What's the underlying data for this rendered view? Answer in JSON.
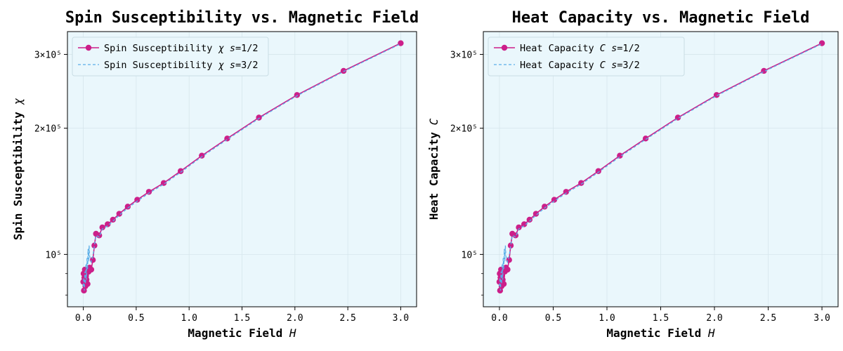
{
  "chart_data": [
    {
      "type": "line",
      "title": "Spin Susceptibility vs. Magnetic Field",
      "xlabel": "Magnetic Field H",
      "ylabel": "Spin Susceptibility χ",
      "xlim": [
        -0.15,
        3.15
      ],
      "ylim": [
        75000,
        340000
      ],
      "yscale": "log",
      "grid": true,
      "legend_position": "top-left",
      "x_ticks": [
        {
          "value": 0.0,
          "label": "0.0"
        },
        {
          "value": 0.5,
          "label": "0.5"
        },
        {
          "value": 1.0,
          "label": "1.0"
        },
        {
          "value": 1.5,
          "label": "1.5"
        },
        {
          "value": 2.0,
          "label": "2.0"
        },
        {
          "value": 2.5,
          "label": "2.5"
        },
        {
          "value": 3.0,
          "label": "3.0"
        }
      ],
      "y_ticks": [
        {
          "value": 100000,
          "label": "10⁵"
        },
        {
          "value": 200000,
          "label": "2×10⁵"
        },
        {
          "value": 300000,
          "label": "3×10⁵"
        }
      ],
      "series": [
        {
          "name": "Spin Susceptibility χ s=1/2",
          "color": "#cc1f8a",
          "style": "solid-marker",
          "x": [
            0.0,
            0.003,
            0.006,
            0.01,
            0.015,
            0.02,
            0.025,
            0.03,
            0.04,
            0.05,
            0.06,
            0.075,
            0.09,
            0.105,
            0.12,
            0.15,
            0.18,
            0.23,
            0.28,
            0.34,
            0.42,
            0.51,
            0.62,
            0.76,
            0.92,
            1.12,
            1.36,
            1.66,
            2.02,
            2.46,
            3.0
          ],
          "y": [
            86000,
            90000,
            82000,
            88000,
            92000,
            84000,
            89000,
            87000,
            85000,
            91000,
            93000,
            92000,
            97000,
            105000,
            112000,
            111000,
            116000,
            118000,
            121000,
            125000,
            130000,
            135000,
            141000,
            148000,
            158000,
            172000,
            189000,
            212000,
            240000,
            274000,
            319000
          ]
        },
        {
          "name": "Spin Susceptibility χ s=3/2",
          "color": "#5aaee8",
          "style": "dashed",
          "x": [
            0.0,
            0.005,
            0.01,
            0.015,
            0.02,
            0.025,
            0.03,
            0.035,
            0.04,
            0.045,
            0.05,
            0.055,
            0.06,
            0.075,
            0.09,
            0.105,
            0.12,
            0.15,
            0.18,
            0.23,
            0.28,
            0.34,
            0.42,
            0.51,
            0.62,
            0.76,
            0.92,
            1.12,
            1.36,
            1.66,
            2.02,
            2.46,
            3.0
          ],
          "y": [
            84000,
            88000,
            82000,
            91000,
            85000,
            95000,
            87000,
            98000,
            92000,
            103000,
            96000,
            105000,
            99000,
            96000,
            99000,
            105000,
            111000,
            110000,
            115000,
            117000,
            120000,
            124000,
            129000,
            134000,
            140000,
            147000,
            157000,
            171000,
            188000,
            211000,
            239000,
            273000,
            318000
          ]
        }
      ]
    },
    {
      "type": "line",
      "title": "Heat Capacity vs. Magnetic Field",
      "xlabel": "Magnetic Field H",
      "ylabel": "Heat Capacity C",
      "xlim": [
        -0.15,
        3.15
      ],
      "ylim": [
        75000,
        340000
      ],
      "yscale": "log",
      "grid": true,
      "legend_position": "top-left",
      "x_ticks": [
        {
          "value": 0.0,
          "label": "0.0"
        },
        {
          "value": 0.5,
          "label": "0.5"
        },
        {
          "value": 1.0,
          "label": "1.0"
        },
        {
          "value": 1.5,
          "label": "1.5"
        },
        {
          "value": 2.0,
          "label": "2.0"
        },
        {
          "value": 2.5,
          "label": "2.5"
        },
        {
          "value": 3.0,
          "label": "3.0"
        }
      ],
      "y_ticks": [
        {
          "value": 100000,
          "label": "10⁵"
        },
        {
          "value": 200000,
          "label": "2×10⁵"
        },
        {
          "value": 300000,
          "label": "3×10⁵"
        }
      ],
      "series": [
        {
          "name": "Heat Capacity C s=1/2",
          "color": "#cc1f8a",
          "style": "solid-marker",
          "x": [
            0.0,
            0.003,
            0.006,
            0.01,
            0.015,
            0.02,
            0.025,
            0.03,
            0.04,
            0.05,
            0.06,
            0.075,
            0.09,
            0.105,
            0.12,
            0.15,
            0.18,
            0.23,
            0.28,
            0.34,
            0.42,
            0.51,
            0.62,
            0.76,
            0.92,
            1.12,
            1.36,
            1.66,
            2.02,
            2.46,
            3.0
          ],
          "y": [
            86000,
            90000,
            82000,
            88000,
            92000,
            84000,
            89000,
            87000,
            85000,
            91000,
            93000,
            92000,
            97000,
            105000,
            112000,
            111000,
            116000,
            118000,
            121000,
            125000,
            130000,
            135000,
            141000,
            148000,
            158000,
            172000,
            189000,
            212000,
            240000,
            274000,
            319000
          ]
        },
        {
          "name": "Heat Capacity C s=3/2",
          "color": "#5aaee8",
          "style": "dashed",
          "x": [
            0.0,
            0.005,
            0.01,
            0.015,
            0.02,
            0.025,
            0.03,
            0.035,
            0.04,
            0.045,
            0.05,
            0.055,
            0.06,
            0.075,
            0.09,
            0.105,
            0.12,
            0.15,
            0.18,
            0.23,
            0.28,
            0.34,
            0.42,
            0.51,
            0.62,
            0.76,
            0.92,
            1.12,
            1.36,
            1.66,
            2.02,
            2.46,
            3.0
          ],
          "y": [
            84000,
            88000,
            82000,
            91000,
            85000,
            95000,
            87000,
            98000,
            92000,
            103000,
            96000,
            105000,
            99000,
            96000,
            99000,
            105000,
            111000,
            110000,
            115000,
            117000,
            120000,
            124000,
            129000,
            134000,
            140000,
            147000,
            157000,
            171000,
            188000,
            211000,
            239000,
            273000,
            318000
          ]
        }
      ]
    }
  ],
  "colors": {
    "plot_background": "#eaf7fc",
    "grid": "#d6e6ec",
    "legend_background": "#eaf7fc",
    "legend_border": "#c9dde4"
  }
}
